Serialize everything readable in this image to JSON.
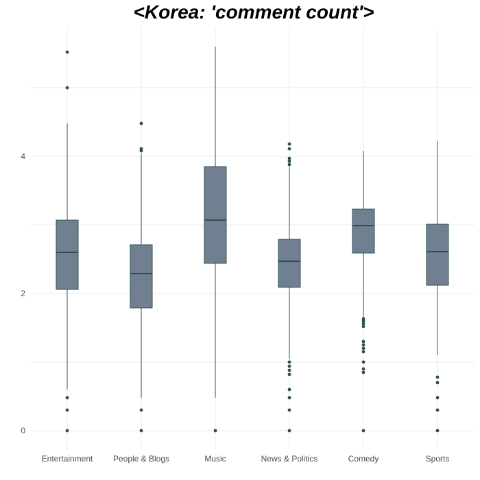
{
  "chart_data": {
    "type": "boxplot",
    "title": "<Korea: 'comment count'>",
    "xlabel": "",
    "ylabel": "",
    "ylim": [
      -0.25,
      5.9
    ],
    "yticks": [
      0,
      2,
      4
    ],
    "grid": true,
    "categories": [
      "Entertainment",
      "People & Blogs",
      "Music",
      "News & Politics",
      "Comedy",
      "Sports"
    ],
    "boxes": [
      {
        "category": "Entertainment",
        "whisker_low": 0.6,
        "q1": 2.06,
        "median": 2.6,
        "q3": 3.07,
        "whisker_high": 4.48,
        "outliers": [
          0,
          0.3,
          0.48,
          5.0,
          5.52
        ]
      },
      {
        "category": "People & Blogs",
        "whisker_low": 0.48,
        "q1": 1.79,
        "median": 2.29,
        "q3": 2.71,
        "whisker_high": 4.04,
        "outliers": [
          0,
          0.3,
          4.08,
          4.11,
          4.48
        ]
      },
      {
        "category": "Music",
        "whisker_low": 0.48,
        "q1": 2.44,
        "median": 3.07,
        "q3": 3.85,
        "whisker_high": 5.6,
        "outliers": [
          0
        ]
      },
      {
        "category": "News & Politics",
        "whisker_low": 1.04,
        "q1": 2.09,
        "median": 2.47,
        "q3": 2.79,
        "whisker_high": 3.85,
        "outliers": [
          0,
          0.3,
          0.48,
          0.6,
          0.82,
          0.88,
          0.94,
          1.0,
          3.88,
          3.93,
          3.97,
          4.11,
          4.18
        ]
      },
      {
        "category": "Comedy",
        "whisker_low": 1.65,
        "q1": 2.59,
        "median": 2.99,
        "q3": 3.23,
        "whisker_high": 4.08,
        "outliers": [
          0,
          0.85,
          0.9,
          1.0,
          1.15,
          1.2,
          1.25,
          1.3,
          1.52,
          1.56,
          1.6,
          1.63
        ]
      },
      {
        "category": "Sports",
        "whisker_low": 1.1,
        "q1": 2.12,
        "median": 2.61,
        "q3": 3.01,
        "whisker_high": 4.22,
        "outliers": [
          0,
          0.3,
          0.48,
          0.7,
          0.78
        ]
      }
    ],
    "colors": {
      "box_fill": "#708090",
      "line": "#2f4f4f",
      "grid": "#ebebeb",
      "title": "#000000",
      "tick": "#4d4d4d"
    }
  }
}
